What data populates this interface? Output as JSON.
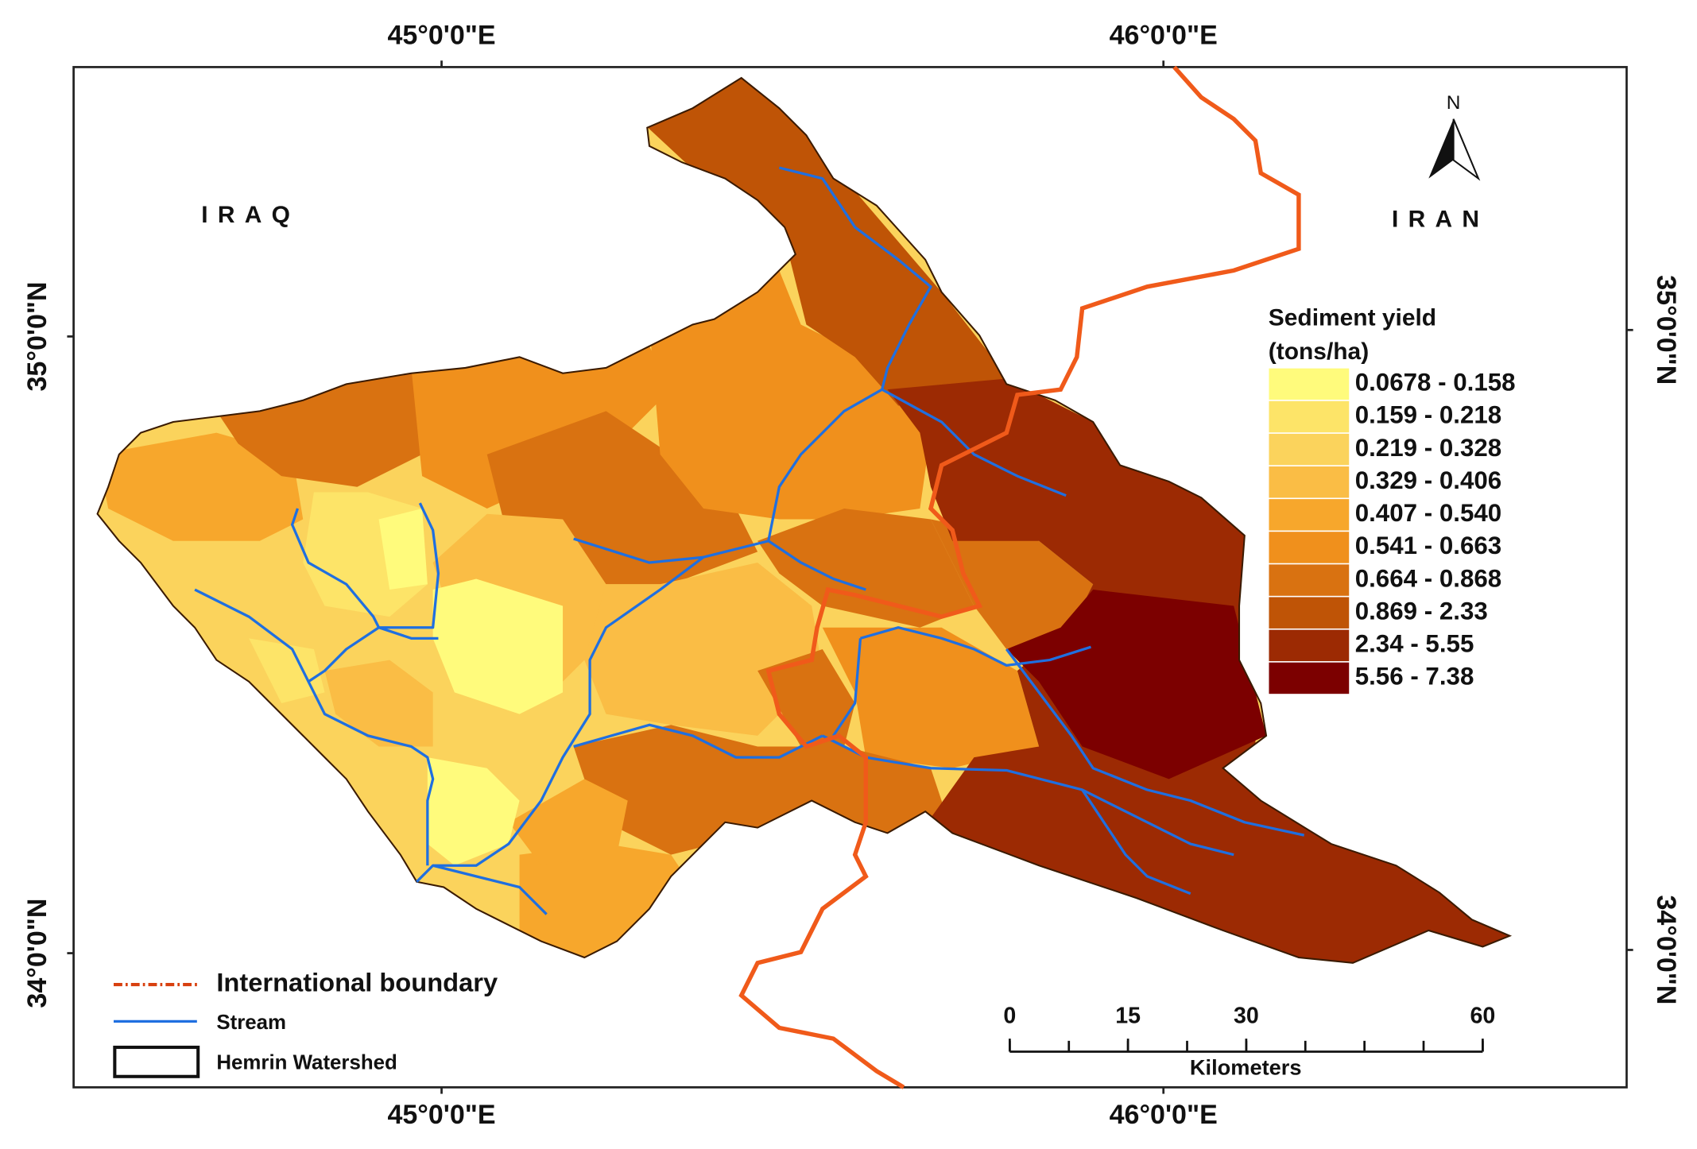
{
  "map": {
    "lon_labels": [
      "45°0'0\"E",
      "46°0'0\"E"
    ],
    "lat_labels": [
      "35°0'0\"N",
      "34°0'0\"N"
    ],
    "countries": [
      "IRAQ",
      "IRAN"
    ],
    "north": "N",
    "legend": {
      "title": "Sediment yield",
      "unit": "(tons/ha)",
      "classes": [
        {
          "label": "0.0678 - 0.158",
          "color": "#fffb7c"
        },
        {
          "label": "0.159 - 0.218",
          "color": "#fde468"
        },
        {
          "label": "0.219 - 0.328",
          "color": "#fbd35c"
        },
        {
          "label": "0.329 - 0.406",
          "color": "#fabd45"
        },
        {
          "label": "0.407 - 0.540",
          "color": "#f7a72c"
        },
        {
          "label": "0.541 - 0.663",
          "color": "#f0901c"
        },
        {
          "label": "0.664 - 0.868",
          "color": "#d97211"
        },
        {
          "label": "0.869 - 2.33",
          "color": "#bf5406"
        },
        {
          "label": "2.34 - 5.55",
          "color": "#9c2a03"
        },
        {
          "label": "5.56 - 7.38",
          "color": "#7c0000"
        }
      ]
    },
    "key": [
      "International boundary",
      "Stream",
      "Hemrin Watershed"
    ],
    "scale_bar": {
      "ticks": [
        0,
        15,
        30,
        60
      ],
      "unit": "Kilometers"
    }
  }
}
